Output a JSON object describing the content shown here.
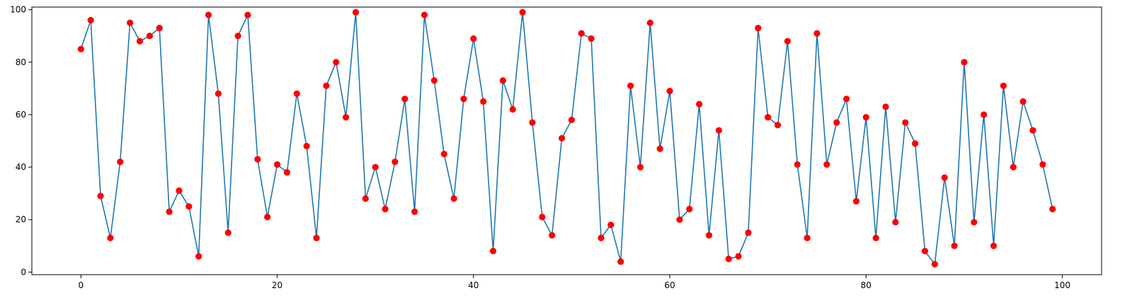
{
  "chart_data": {
    "type": "line",
    "title": "",
    "xlabel": "",
    "ylabel": "",
    "xlim": [
      -5,
      104
    ],
    "ylim": [
      -1,
      101
    ],
    "xticks": [
      0,
      20,
      40,
      60,
      80,
      100
    ],
    "yticks": [
      0,
      20,
      40,
      60,
      80,
      100
    ],
    "xtick_labels": [
      "0",
      "20",
      "40",
      "60",
      "80",
      "100"
    ],
    "ytick_labels": [
      "0",
      "20",
      "40",
      "60",
      "80",
      "100"
    ],
    "grid": false,
    "legend": "none",
    "series": [
      {
        "line_color": "#1f77b4",
        "marker_color": "#ff0000",
        "marker": "circle",
        "x": [
          0,
          1,
          2,
          3,
          4,
          5,
          6,
          7,
          8,
          9,
          10,
          11,
          12,
          13,
          14,
          15,
          16,
          17,
          18,
          19,
          20,
          21,
          22,
          23,
          24,
          25,
          26,
          27,
          28,
          29,
          30,
          31,
          32,
          33,
          34,
          35,
          36,
          37,
          38,
          39,
          40,
          41,
          42,
          43,
          44,
          45,
          46,
          47,
          48,
          49,
          50,
          51,
          52,
          53,
          54,
          55,
          56,
          57,
          58,
          59,
          60,
          61,
          62,
          63,
          64,
          65,
          66,
          67,
          68,
          69,
          70,
          71,
          72,
          73,
          74,
          75,
          76,
          77,
          78,
          79,
          80,
          81,
          82,
          83,
          84,
          85,
          86,
          87,
          88,
          89,
          90,
          91,
          92,
          93,
          94,
          95,
          96,
          97,
          98,
          99
        ],
        "y": [
          85,
          96,
          29,
          13,
          42,
          95,
          88,
          90,
          93,
          23,
          31,
          25,
          6,
          98,
          68,
          15,
          90,
          98,
          43,
          21,
          41,
          38,
          68,
          48,
          13,
          71,
          80,
          59,
          99,
          28,
          40,
          24,
          42,
          66,
          23,
          98,
          73,
          45,
          28,
          66,
          89,
          65,
          8,
          73,
          62,
          99,
          57,
          21,
          14,
          51,
          58,
          91,
          89,
          13,
          18,
          4,
          71,
          40,
          95,
          47,
          69,
          20,
          24,
          64,
          14,
          54,
          5,
          6,
          15,
          93,
          59,
          56,
          88,
          41,
          13,
          91,
          41,
          57,
          66,
          27,
          59,
          13,
          63,
          19,
          57,
          49,
          8,
          3,
          36,
          10,
          80,
          19,
          60,
          10,
          71,
          40,
          65,
          54,
          41,
          24
        ]
      }
    ]
  }
}
